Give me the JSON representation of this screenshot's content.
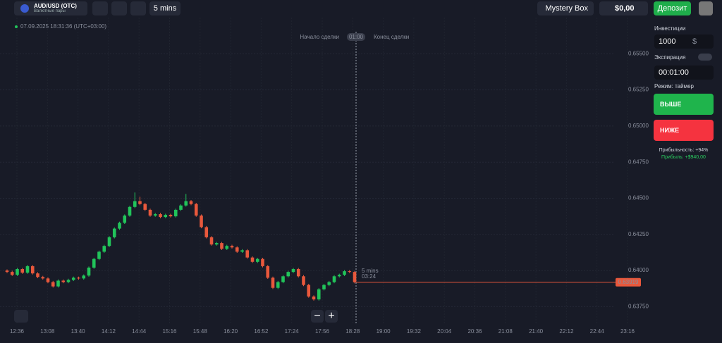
{
  "header": {
    "pair": "AUD/USD (OTC)",
    "pair_group": "Валютные пары",
    "timeframe": "5 mins",
    "mystery_box": "Mystery Box",
    "balance": "$0,00",
    "deposit": "Депозит"
  },
  "chart": {
    "type": "candlestick",
    "timestamp": "07.09.2025 18:31:36 (UTC+03:00)",
    "deal_start": "Начало сделки",
    "deal_end": "Конец сделки",
    "deal_timer": "01:00",
    "candle_label": "5 mins",
    "candle_timer": "03:24",
    "up_color": "#21c45a",
    "down_color": "#e8583c",
    "grid": true,
    "ylim": [
      0.6363,
      0.6575
    ],
    "yticks": [
      {
        "value": 0.6375,
        "label": "0.63750"
      },
      {
        "value": 0.64,
        "label": "0.64000"
      },
      {
        "value": 0.6425,
        "label": "0.64250"
      },
      {
        "value": 0.645,
        "label": "0.64500"
      },
      {
        "value": 0.6475,
        "label": "0.64750"
      },
      {
        "value": 0.65,
        "label": "0.65000"
      },
      {
        "value": 0.6525,
        "label": "0.65250"
      },
      {
        "value": 0.655,
        "label": "0.65500"
      }
    ],
    "xticks": [
      "12:36",
      "13:08",
      "13:40",
      "14:12",
      "14:44",
      "15:16",
      "15:48",
      "16:20",
      "16:52",
      "17:24",
      "17:56",
      "18:28",
      "19:00",
      "19:32",
      "20:04",
      "20:36",
      "21:08",
      "21:40",
      "22:12",
      "22:44",
      "23:16"
    ],
    "current_price": 0.63919,
    "candles": [
      [
        0.64,
        0.64008,
        0.63982,
        0.6399
      ],
      [
        0.6399,
        0.63998,
        0.63962,
        0.6397
      ],
      [
        0.6397,
        0.64018,
        0.63962,
        0.6401
      ],
      [
        0.6401,
        0.64018,
        0.63977,
        0.63985
      ],
      [
        0.63985,
        0.64038,
        0.63977,
        0.6403
      ],
      [
        0.6403,
        0.64038,
        0.63972,
        0.6398
      ],
      [
        0.6398,
        0.63988,
        0.63947,
        0.63955
      ],
      [
        0.63955,
        0.63963,
        0.63937,
        0.63945
      ],
      [
        0.63945,
        0.63953,
        0.63912,
        0.6392
      ],
      [
        0.6392,
        0.63928,
        0.63882,
        0.6389
      ],
      [
        0.6389,
        0.63938,
        0.63882,
        0.6393
      ],
      [
        0.6393,
        0.63938,
        0.63912,
        0.6392
      ],
      [
        0.6392,
        0.63943,
        0.63912,
        0.63935
      ],
      [
        0.63935,
        0.63958,
        0.63927,
        0.6395
      ],
      [
        0.6395,
        0.63958,
        0.63937,
        0.63945
      ],
      [
        0.63945,
        0.63973,
        0.63937,
        0.63965
      ],
      [
        0.63965,
        0.64028,
        0.63957,
        0.6402
      ],
      [
        0.6402,
        0.64088,
        0.64012,
        0.6408
      ],
      [
        0.6408,
        0.64138,
        0.64072,
        0.6413
      ],
      [
        0.6413,
        0.64178,
        0.64122,
        0.6417
      ],
      [
        0.6417,
        0.64238,
        0.64162,
        0.6423
      ],
      [
        0.6423,
        0.64298,
        0.64222,
        0.6429
      ],
      [
        0.6429,
        0.64338,
        0.64282,
        0.6433
      ],
      [
        0.6433,
        0.64388,
        0.64322,
        0.6438
      ],
      [
        0.6438,
        0.64448,
        0.64372,
        0.6444
      ],
      [
        0.6444,
        0.6454,
        0.64432,
        0.6448
      ],
      [
        0.6448,
        0.6451,
        0.64452,
        0.6446
      ],
      [
        0.6446,
        0.64468,
        0.64412,
        0.6442
      ],
      [
        0.6442,
        0.64428,
        0.64372,
        0.6438
      ],
      [
        0.6438,
        0.64398,
        0.64372,
        0.6439
      ],
      [
        0.6439,
        0.64398,
        0.64362,
        0.6437
      ],
      [
        0.6437,
        0.64393,
        0.64362,
        0.64385
      ],
      [
        0.64385,
        0.64393,
        0.64367,
        0.64375
      ],
      [
        0.64375,
        0.64428,
        0.64367,
        0.6442
      ],
      [
        0.6442,
        0.64458,
        0.64412,
        0.6445
      ],
      [
        0.6445,
        0.6453,
        0.64442,
        0.6448
      ],
      [
        0.6448,
        0.64488,
        0.64452,
        0.6446
      ],
      [
        0.6446,
        0.64468,
        0.64372,
        0.6438
      ],
      [
        0.6438,
        0.64388,
        0.64292,
        0.643
      ],
      [
        0.643,
        0.64308,
        0.64222,
        0.6423
      ],
      [
        0.6423,
        0.64238,
        0.64172,
        0.6418
      ],
      [
        0.6418,
        0.64198,
        0.64172,
        0.6419
      ],
      [
        0.6419,
        0.64198,
        0.64142,
        0.6415
      ],
      [
        0.6415,
        0.64178,
        0.64142,
        0.6417
      ],
      [
        0.6417,
        0.64178,
        0.64152,
        0.6416
      ],
      [
        0.6416,
        0.64168,
        0.64122,
        0.6413
      ],
      [
        0.6413,
        0.64148,
        0.64122,
        0.6414
      ],
      [
        0.6414,
        0.64148,
        0.64082,
        0.6409
      ],
      [
        0.6409,
        0.64098,
        0.64052,
        0.6406
      ],
      [
        0.6406,
        0.64088,
        0.64052,
        0.6408
      ],
      [
        0.6408,
        0.64088,
        0.64022,
        0.6403
      ],
      [
        0.6403,
        0.64038,
        0.63942,
        0.6395
      ],
      [
        0.6395,
        0.63958,
        0.63872,
        0.6388
      ],
      [
        0.6388,
        0.63928,
        0.63872,
        0.6392
      ],
      [
        0.6392,
        0.63968,
        0.63912,
        0.6396
      ],
      [
        0.6396,
        0.63998,
        0.63952,
        0.6399
      ],
      [
        0.6399,
        0.64018,
        0.63982,
        0.6401
      ],
      [
        0.6401,
        0.64018,
        0.63952,
        0.6396
      ],
      [
        0.6396,
        0.63968,
        0.63892,
        0.639
      ],
      [
        0.639,
        0.63908,
        0.63812,
        0.6382
      ],
      [
        0.6382,
        0.63828,
        0.63792,
        0.638
      ],
      [
        0.638,
        0.63878,
        0.63792,
        0.6387
      ],
      [
        0.6387,
        0.63908,
        0.63862,
        0.639
      ],
      [
        0.639,
        0.63928,
        0.63892,
        0.6392
      ],
      [
        0.6392,
        0.63968,
        0.63912,
        0.6396
      ],
      [
        0.6396,
        0.63978,
        0.63952,
        0.6397
      ],
      [
        0.6397,
        0.64003,
        0.63962,
        0.63995
      ],
      [
        0.63995,
        0.64003,
        0.63982,
        0.6399
      ],
      [
        0.6399,
        0.63998,
        0.63911,
        0.63919
      ]
    ]
  },
  "sidebar": {
    "investment_label": "Инвестиции",
    "investment": "1000",
    "currency": "$",
    "expiration_label": "Экспирация",
    "expiration": "00:01:00",
    "mode": "Режим: таймер",
    "up": "ВЫШЕ",
    "down": "НИЖЕ",
    "profitability": "Прибыльность: +94%",
    "profit": "Прибыль: +$940,00"
  }
}
